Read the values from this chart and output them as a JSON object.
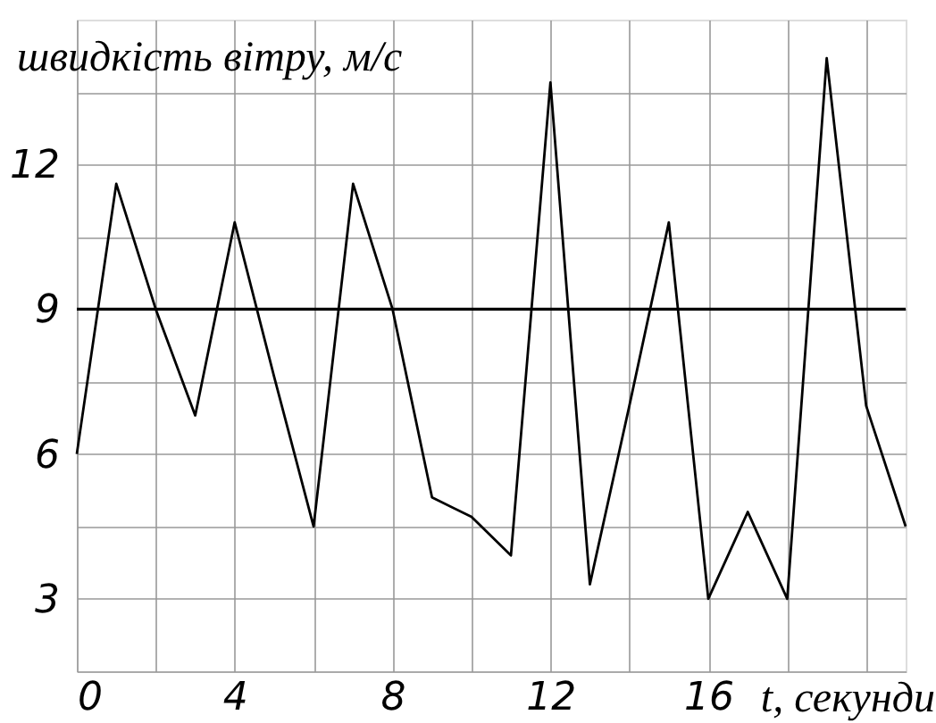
{
  "chart_data": {
    "type": "line",
    "xlabel": "t, секунди",
    "ylabel": "швидкість вітру, м/с",
    "x": [
      0,
      1,
      2,
      3,
      4,
      5,
      6,
      7,
      8,
      9,
      10,
      11,
      12,
      13,
      14,
      15,
      16,
      17,
      18,
      19,
      20,
      21
    ],
    "series": [
      {
        "color": "#000000",
        "values": [
          6,
          11.6,
          9,
          6.8,
          10.8,
          7.6,
          4.5,
          11.6,
          9,
          5.1,
          4.7,
          3.9,
          13.7,
          3.3,
          7,
          10.8,
          3,
          4.8,
          3,
          14.2,
          7,
          4.5
        ]
      }
    ],
    "xlim": [
      0,
      21
    ],
    "xticks": [
      0,
      {
        "value": 2,
        "label": null
      },
      4,
      {
        "value": 6,
        "label": null
      },
      8,
      {
        "value": 10,
        "label": null
      },
      12,
      {
        "value": 14,
        "label": null
      },
      16,
      {
        "value": 18,
        "label": null
      },
      {
        "value": 20,
        "label": null
      }
    ],
    "ylim": [
      1.5,
      15
    ],
    "yticks": [
      {
        "value": 1.5,
        "label": null
      },
      3,
      {
        "value": 4.5,
        "label": null
      },
      6,
      {
        "value": 7.5,
        "label": null
      },
      9,
      {
        "value": 10.5,
        "label": null
      },
      12,
      {
        "value": 13.5,
        "label": null
      }
    ],
    "ref_lines": [
      {
        "axis": "y",
        "value": 9,
        "label": null,
        "color": "#000000"
      }
    ],
    "grid": true,
    "marker": "none",
    "line_style": "solid"
  }
}
